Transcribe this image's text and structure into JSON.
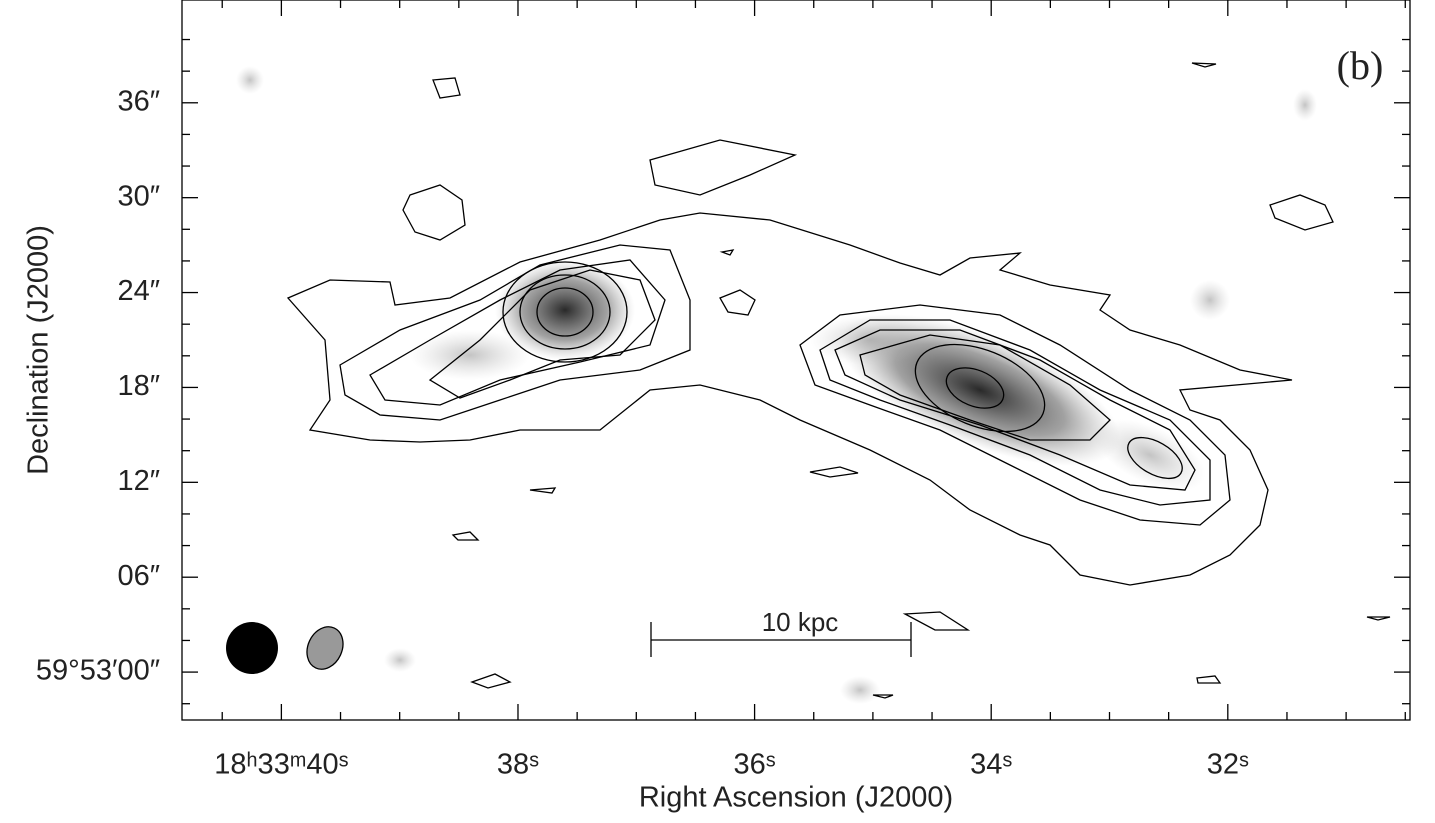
{
  "chart_data": {
    "type": "image",
    "title": "(b)",
    "xlabel": "Right Ascension (J2000)",
    "ylabel": "Declination (J2000)",
    "scalebar_label": "10 kpc",
    "xlim": [
      40.84,
      30.46
    ],
    "ylim": [
      -3.03,
      42.5
    ],
    "xticks": [
      {
        "value": 40,
        "label": "18ʰ33ᵐ40ˢ"
      },
      {
        "value": 38,
        "label": "38ˢ"
      },
      {
        "value": 36,
        "label": "36ˢ"
      },
      {
        "value": 34,
        "label": "34ˢ"
      },
      {
        "value": 32,
        "label": "32ˢ"
      }
    ],
    "yticks": [
      {
        "value": 0,
        "label": "59°53′00″"
      },
      {
        "value": 6,
        "label": "06″"
      },
      {
        "value": 12,
        "label": "12″"
      },
      {
        "value": 18,
        "label": "18″"
      },
      {
        "value": 24,
        "label": "24″"
      },
      {
        "value": 30,
        "label": "30″"
      },
      {
        "value": 36,
        "label": "36″"
      }
    ]
  }
}
